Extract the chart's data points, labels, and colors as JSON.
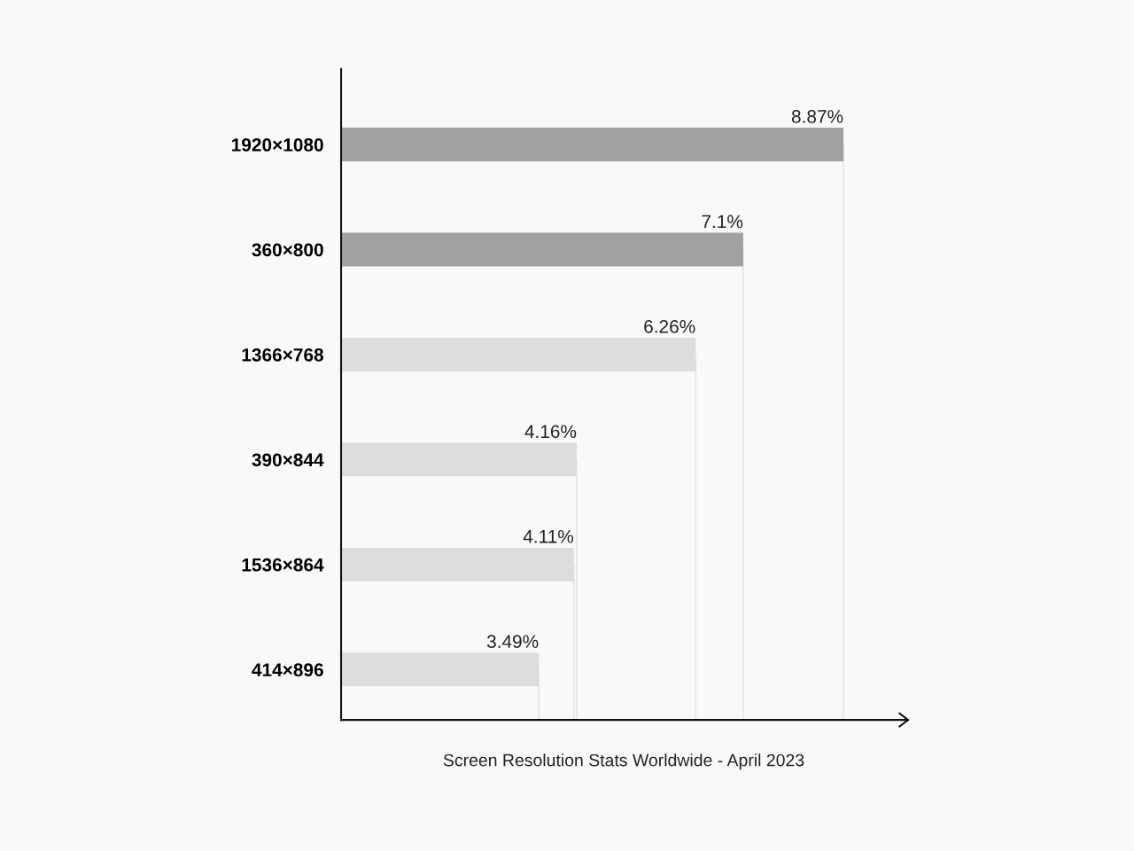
{
  "chart_data": {
    "type": "bar",
    "orientation": "horizontal",
    "categories": [
      "1920×1080",
      "360×800",
      "1366×768",
      "390×844",
      "1536×864",
      "414×896"
    ],
    "values": [
      8.87,
      7.1,
      6.26,
      4.16,
      4.11,
      3.49
    ],
    "value_labels": [
      "8.87%",
      "7.1%",
      "6.26%",
      "4.16%",
      "4.11%",
      "3.49%"
    ],
    "colors": [
      "#a0a1a0",
      "#a0a1a0",
      "#dddddd",
      "#dddddd",
      "#dddddd",
      "#dddddd"
    ],
    "tick_labels": "y",
    "grid": false,
    "ref_lines": [
      {
        "axis": "x",
        "value": 8.87,
        "color": "#e2e2e2"
      },
      {
        "axis": "x",
        "value": 7.1,
        "color": "#e2e2e2"
      },
      {
        "axis": "x",
        "value": 6.26,
        "color": "#e2e2e2"
      },
      {
        "axis": "x",
        "value": 4.16,
        "color": "#e2e2e2"
      },
      {
        "axis": "x",
        "value": 4.11,
        "color": "#e2e2e2"
      },
      {
        "axis": "x",
        "value": 3.49,
        "color": "#e2e2e2"
      }
    ],
    "annotations": [
      "Screen Resolution Stats Worldwide - April 2023"
    ]
  }
}
